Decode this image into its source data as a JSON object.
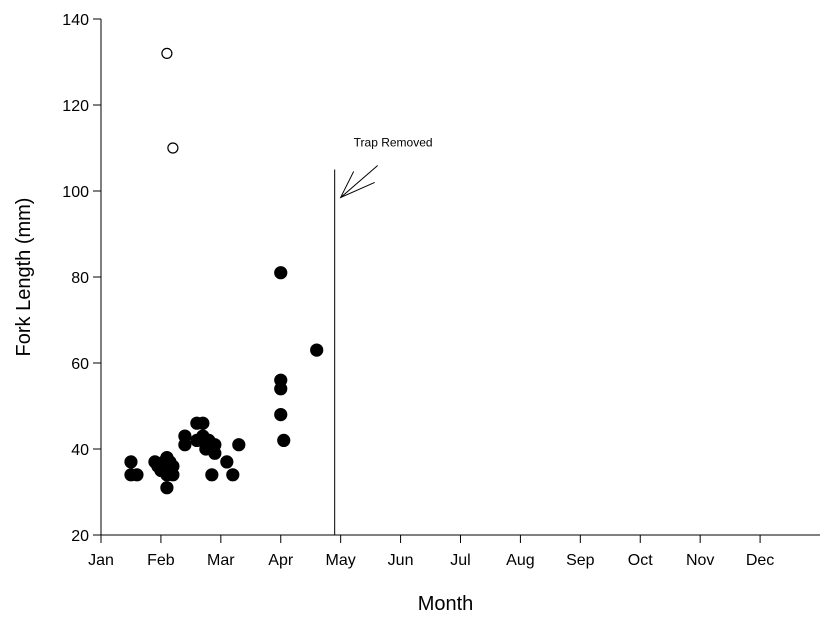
{
  "chart_data": {
    "type": "scatter",
    "title": "",
    "xlabel": "Month",
    "ylabel": "Fork Length (mm)",
    "x_categories": [
      "Jan",
      "Feb",
      "Mar",
      "Apr",
      "May",
      "Jun",
      "Jul",
      "Aug",
      "Sep",
      "Oct",
      "Nov",
      "Dec"
    ],
    "ylim": [
      20,
      140
    ],
    "yticks": [
      20,
      40,
      60,
      80,
      100,
      120,
      140
    ],
    "grid": false,
    "legend": "none",
    "series": [
      {
        "marker": "filled-circle",
        "color": "#000000",
        "points": [
          {
            "x": 1.5,
            "y": 37
          },
          {
            "x": 1.5,
            "y": 34
          },
          {
            "x": 1.6,
            "y": 34
          },
          {
            "x": 1.9,
            "y": 37
          },
          {
            "x": 1.95,
            "y": 36
          },
          {
            "x": 2.0,
            "y": 35
          },
          {
            "x": 2.05,
            "y": 37
          },
          {
            "x": 2.1,
            "y": 38
          },
          {
            "x": 2.15,
            "y": 37
          },
          {
            "x": 2.1,
            "y": 34
          },
          {
            "x": 2.2,
            "y": 36
          },
          {
            "x": 2.2,
            "y": 34
          },
          {
            "x": 2.1,
            "y": 31
          },
          {
            "x": 2.4,
            "y": 43
          },
          {
            "x": 2.4,
            "y": 41
          },
          {
            "x": 2.6,
            "y": 46
          },
          {
            "x": 2.7,
            "y": 46
          },
          {
            "x": 2.6,
            "y": 42
          },
          {
            "x": 2.7,
            "y": 43
          },
          {
            "x": 2.75,
            "y": 41
          },
          {
            "x": 2.8,
            "y": 42
          },
          {
            "x": 2.85,
            "y": 40
          },
          {
            "x": 2.9,
            "y": 41
          },
          {
            "x": 2.9,
            "y": 39
          },
          {
            "x": 2.75,
            "y": 40
          },
          {
            "x": 2.85,
            "y": 34
          },
          {
            "x": 3.1,
            "y": 37
          },
          {
            "x": 3.2,
            "y": 34
          },
          {
            "x": 3.3,
            "y": 41
          },
          {
            "x": 4.0,
            "y": 81
          },
          {
            "x": 4.0,
            "y": 56
          },
          {
            "x": 4.0,
            "y": 54
          },
          {
            "x": 4.0,
            "y": 48
          },
          {
            "x": 4.05,
            "y": 42
          },
          {
            "x": 4.6,
            "y": 63
          }
        ]
      },
      {
        "marker": "open-circle",
        "color": "#000000",
        "points": [
          {
            "x": 2.1,
            "y": 132
          },
          {
            "x": 2.2,
            "y": 110
          }
        ]
      }
    ],
    "vertical_line": {
      "x": 4.9,
      "y_top": 105
    },
    "annotation": {
      "text": "Trap Removed",
      "arrow_tip": {
        "x": 5.0,
        "y": 98.5
      }
    }
  }
}
